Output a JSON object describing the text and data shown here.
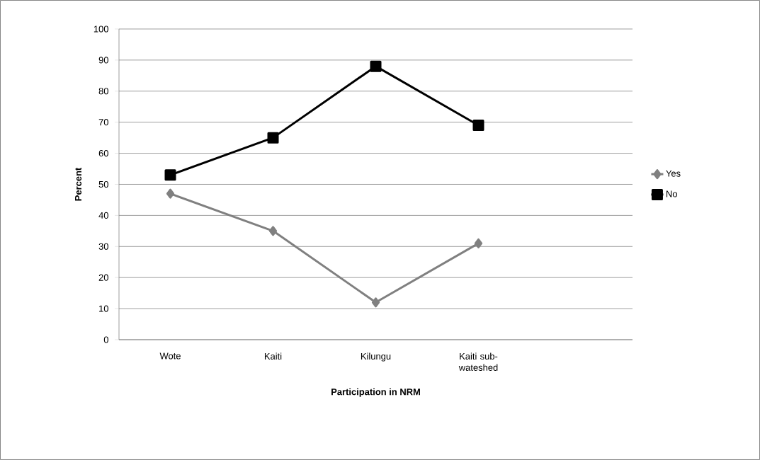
{
  "chart_data": {
    "type": "line",
    "xlabel": "Participation in NRM",
    "ylabel": "Percent",
    "categories": [
      "Wote",
      "Kaiti",
      "Kilungu",
      "Kaiti  sub-wateshed",
      null
    ],
    "series": [
      {
        "name": "Yes",
        "color": "#808080",
        "marker": "diamond",
        "values": [
          47,
          35,
          12,
          31,
          null
        ]
      },
      {
        "name": "No",
        "color": "#000000",
        "marker": "square",
        "values": [
          53,
          65,
          88,
          69,
          null
        ]
      }
    ],
    "ylim": [
      0,
      100
    ],
    "yticks": [
      0,
      10,
      20,
      30,
      40,
      50,
      60,
      70,
      80,
      90,
      100
    ],
    "grid": "y",
    "legend": "right"
  }
}
